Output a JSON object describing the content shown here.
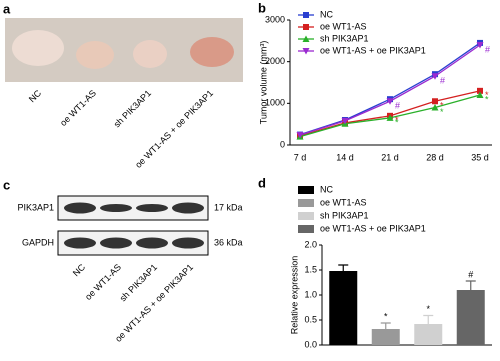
{
  "figure": {
    "panel_labels": [
      "a",
      "b",
      "c",
      "d"
    ],
    "photo_labels": [
      "NC",
      "oe WT1-AS",
      "sh PIK3AP1",
      "oe WT1-AS + oe PIK3AP1"
    ],
    "blot": {
      "rows": [
        {
          "label": "PIK3AP1",
          "size": "17 kDa"
        },
        {
          "label": "GAPDH",
          "size": "36 kDa"
        }
      ],
      "lane_labels": [
        "NC",
        "oe WT1-AS",
        "sh PIK3AP1",
        "oe WT1-AS + oe PIK3AP1"
      ]
    }
  },
  "chart_data": [
    {
      "type": "line",
      "y_label": "Tumor volume (mm³)",
      "legend": "top-left",
      "categories": [
        "7 d",
        "14 d",
        "21 d",
        "28 d",
        "35 d"
      ],
      "ylim": [
        0,
        3000
      ],
      "yticks": [
        0,
        1000,
        2000,
        3000
      ],
      "series": [
        {
          "name": "NC",
          "color": "#2a3fd0",
          "marker": "square",
          "values": [
            250,
            600,
            1100,
            1700,
            2450
          ],
          "annotations": [
            null,
            null,
            null,
            null,
            null
          ]
        },
        {
          "name": "oe WT1-AS",
          "color": "#d42020",
          "marker": "square",
          "values": [
            220,
            530,
            700,
            1050,
            1300
          ],
          "annotations": [
            null,
            null,
            "*",
            "*",
            "*"
          ]
        },
        {
          "name": "sh PIK3AP1",
          "color": "#2ab02a",
          "marker": "triangle-up",
          "values": [
            200,
            510,
            650,
            900,
            1200
          ],
          "annotations": [
            null,
            null,
            "*",
            "*",
            "*"
          ]
        },
        {
          "name": "oe WT1-AS + oe PIK3AP1",
          "color": "#9a2ad0",
          "marker": "triangle-down",
          "values": [
            240,
            580,
            1050,
            1650,
            2400
          ],
          "annotations": [
            null,
            null,
            "#",
            "#",
            "#"
          ]
        }
      ]
    },
    {
      "type": "bar",
      "y_label": "Relative expression",
      "categories": [
        "NC",
        "oe WT1-AS",
        "sh PIK3AP1",
        "oe WT1-AS + oe PIK3AP1"
      ],
      "values": [
        1.48,
        0.32,
        0.42,
        1.1
      ],
      "errors": [
        0.12,
        0.12,
        0.17,
        0.18
      ],
      "colors": [
        "#000000",
        "#999999",
        "#d0d0d0",
        "#666666"
      ],
      "annotations": [
        null,
        "*",
        "*",
        "#"
      ],
      "ylim": [
        0,
        2
      ],
      "yticks": [
        {
          "value": 0,
          "label": "0.0"
        },
        0.5,
        {
          "value": 1,
          "label": "1.0"
        },
        1.5,
        {
          "value": 2,
          "label": "2.0"
        }
      ]
    }
  ]
}
